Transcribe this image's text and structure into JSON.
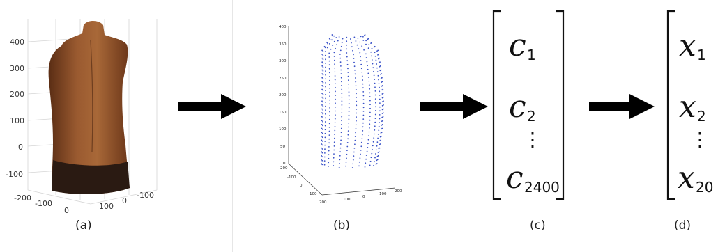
{
  "panel_a": {
    "caption": "(a)",
    "yticks": [
      "400",
      "300",
      "200",
      "100",
      "0",
      "-100"
    ],
    "xticks": [
      "-200",
      "-100",
      "0",
      "100",
      "0",
      "-100"
    ]
  },
  "panel_b": {
    "caption": "(b)",
    "yticks": [
      "400",
      "350",
      "300",
      "250",
      "200",
      "150",
      "100",
      "50",
      "0"
    ],
    "xticks": [
      "-200",
      "-100",
      "0",
      "100",
      "200",
      "100",
      "0",
      "-100",
      "-200"
    ]
  },
  "panel_c": {
    "caption": "(c)",
    "symbol": "c",
    "subscripts": [
      "1",
      "2",
      "2400"
    ],
    "dots": "⋮"
  },
  "panel_d": {
    "caption": "(d)",
    "symbol": "x",
    "subscripts": [
      "1",
      "2",
      "20"
    ],
    "dots": "⋮"
  },
  "colors": {
    "torso": "#8a4a25",
    "pointcloud": "#3a52c8",
    "arrow": "#000000"
  }
}
